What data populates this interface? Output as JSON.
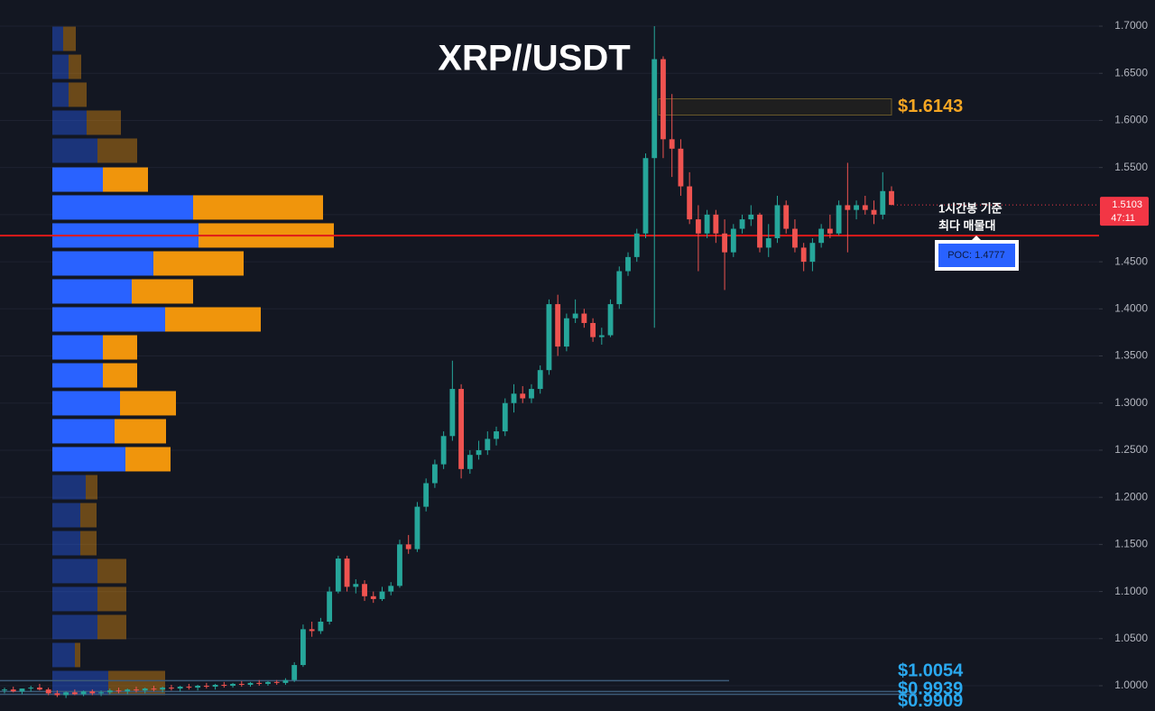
{
  "chart_data": {
    "type": "candlestick",
    "title": "XRP//USDT",
    "ylim": [
      0.9732,
      1.7278
    ],
    "yticks": [
      {
        "value": 1.0,
        "label": "1.0000"
      },
      {
        "value": 1.05,
        "label": "1.0500"
      },
      {
        "value": 1.1,
        "label": "1.1000"
      },
      {
        "value": 1.15,
        "label": "1.1500"
      },
      {
        "value": 1.2,
        "label": "1.2000"
      },
      {
        "value": 1.25,
        "label": "1.2500"
      },
      {
        "value": 1.3,
        "label": "1.3000"
      },
      {
        "value": 1.35,
        "label": "1.3500"
      },
      {
        "value": 1.4,
        "label": "1.4000"
      },
      {
        "value": 1.45,
        "label": "1.4500"
      },
      {
        "value": 1.5,
        "label": "1.5000"
      },
      {
        "value": 1.55,
        "label": "1.5500"
      },
      {
        "value": 1.6,
        "label": "1.6000"
      },
      {
        "value": 1.65,
        "label": "1.6500"
      },
      {
        "value": 1.7,
        "label": "1.7000"
      }
    ],
    "grid": true,
    "up_color": "#26a69a",
    "down_color": "#ef5350",
    "ohlc": [
      [
        0.995,
        0.998,
        0.992,
        0.996
      ],
      [
        0.996,
        0.999,
        0.993,
        0.994
      ],
      [
        0.994,
        0.997,
        0.991,
        0.997
      ],
      [
        0.997,
        1.0,
        0.994,
        0.998
      ],
      [
        0.998,
        1.002,
        0.995,
        0.996
      ],
      [
        0.996,
        0.998,
        0.99,
        0.992
      ],
      [
        0.992,
        0.995,
        0.988,
        0.99
      ],
      [
        0.99,
        0.994,
        0.987,
        0.993
      ],
      [
        0.993,
        0.996,
        0.99,
        0.991
      ],
      [
        0.991,
        0.995,
        0.989,
        0.994
      ],
      [
        0.994,
        0.996,
        0.99,
        0.992
      ],
      [
        0.992,
        0.995,
        0.989,
        0.993
      ],
      [
        0.993,
        0.997,
        0.991,
        0.995
      ],
      [
        0.995,
        0.998,
        0.992,
        0.994
      ],
      [
        0.994,
        0.997,
        0.991,
        0.996
      ],
      [
        0.996,
        0.999,
        0.993,
        0.995
      ],
      [
        0.995,
        0.998,
        0.992,
        0.997
      ],
      [
        0.997,
        1.0,
        0.994,
        0.996
      ],
      [
        0.996,
        0.999,
        0.993,
        0.998
      ],
      [
        0.998,
        1.001,
        0.995,
        0.997
      ],
      [
        0.997,
        1.0,
        0.994,
        0.999
      ],
      [
        0.999,
        1.002,
        0.996,
        0.998
      ],
      [
        0.998,
        1.001,
        0.995,
        1.0
      ],
      [
        1.0,
        1.003,
        0.997,
        0.999
      ],
      [
        0.999,
        1.002,
        0.996,
        1.001
      ],
      [
        1.001,
        1.004,
        0.998,
        1.0
      ],
      [
        1.0,
        1.003,
        0.998,
        1.002
      ],
      [
        1.002,
        1.005,
        0.999,
        1.001
      ],
      [
        1.001,
        1.004,
        0.999,
        1.003
      ],
      [
        1.003,
        1.006,
        1.0,
        1.002
      ],
      [
        1.002,
        1.005,
        1.0,
        1.004
      ],
      [
        1.004,
        1.006,
        1.001,
        1.003
      ],
      [
        1.003,
        1.008,
        1.001,
        1.006
      ],
      [
        1.006,
        1.025,
        1.004,
        1.022
      ],
      [
        1.022,
        1.065,
        1.02,
        1.06
      ],
      [
        1.06,
        1.068,
        1.052,
        1.058
      ],
      [
        1.058,
        1.072,
        1.055,
        1.068
      ],
      [
        1.068,
        1.105,
        1.065,
        1.1
      ],
      [
        1.1,
        1.138,
        1.098,
        1.135
      ],
      [
        1.135,
        1.138,
        1.1,
        1.105
      ],
      [
        1.105,
        1.113,
        1.098,
        1.108
      ],
      [
        1.108,
        1.112,
        1.09,
        1.095
      ],
      [
        1.095,
        1.1,
        1.088,
        1.092
      ],
      [
        1.092,
        1.105,
        1.09,
        1.1
      ],
      [
        1.1,
        1.11,
        1.096,
        1.106
      ],
      [
        1.106,
        1.155,
        1.104,
        1.15
      ],
      [
        1.15,
        1.16,
        1.14,
        1.145
      ],
      [
        1.145,
        1.195,
        1.142,
        1.19
      ],
      [
        1.19,
        1.22,
        1.185,
        1.215
      ],
      [
        1.215,
        1.24,
        1.21,
        1.235
      ],
      [
        1.235,
        1.27,
        1.23,
        1.265
      ],
      [
        1.265,
        1.345,
        1.26,
        1.315
      ],
      [
        1.315,
        1.32,
        1.22,
        1.23
      ],
      [
        1.23,
        1.25,
        1.225,
        1.245
      ],
      [
        1.245,
        1.26,
        1.24,
        1.25
      ],
      [
        1.25,
        1.27,
        1.245,
        1.262
      ],
      [
        1.262,
        1.275,
        1.255,
        1.27
      ],
      [
        1.27,
        1.305,
        1.265,
        1.3
      ],
      [
        1.3,
        1.32,
        1.29,
        1.31
      ],
      [
        1.31,
        1.318,
        1.3,
        1.305
      ],
      [
        1.305,
        1.32,
        1.3,
        1.315
      ],
      [
        1.315,
        1.34,
        1.31,
        1.335
      ],
      [
        1.335,
        1.41,
        1.33,
        1.405
      ],
      [
        1.405,
        1.415,
        1.35,
        1.36
      ],
      [
        1.36,
        1.395,
        1.355,
        1.39
      ],
      [
        1.39,
        1.41,
        1.385,
        1.395
      ],
      [
        1.395,
        1.4,
        1.38,
        1.385
      ],
      [
        1.385,
        1.39,
        1.365,
        1.37
      ],
      [
        1.37,
        1.38,
        1.362,
        1.372
      ],
      [
        1.372,
        1.41,
        1.37,
        1.405
      ],
      [
        1.405,
        1.445,
        1.4,
        1.44
      ],
      [
        1.44,
        1.46,
        1.435,
        1.455
      ],
      [
        1.455,
        1.485,
        1.45,
        1.48
      ],
      [
        1.48,
        1.565,
        1.475,
        1.56
      ],
      [
        1.56,
        1.7,
        1.38,
        1.665
      ],
      [
        1.665,
        1.668,
        1.56,
        1.58
      ],
      [
        1.58,
        1.628,
        1.54,
        1.57
      ],
      [
        1.57,
        1.58,
        1.52,
        1.53
      ],
      [
        1.53,
        1.545,
        1.49,
        1.495
      ],
      [
        1.495,
        1.51,
        1.44,
        1.48
      ],
      [
        1.48,
        1.505,
        1.475,
        1.5
      ],
      [
        1.5,
        1.505,
        1.47,
        1.48
      ],
      [
        1.48,
        1.495,
        1.42,
        1.46
      ],
      [
        1.46,
        1.49,
        1.455,
        1.485
      ],
      [
        1.485,
        1.5,
        1.48,
        1.495
      ],
      [
        1.495,
        1.51,
        1.488,
        1.5
      ],
      [
        1.5,
        1.502,
        1.46,
        1.465
      ],
      [
        1.465,
        1.49,
        1.455,
        1.475
      ],
      [
        1.475,
        1.52,
        1.47,
        1.51
      ],
      [
        1.51,
        1.515,
        1.48,
        1.485
      ],
      [
        1.485,
        1.495,
        1.46,
        1.465
      ],
      [
        1.465,
        1.47,
        1.44,
        1.45
      ],
      [
        1.45,
        1.475,
        1.44,
        1.47
      ],
      [
        1.47,
        1.49,
        1.465,
        1.485
      ],
      [
        1.485,
        1.5,
        1.475,
        1.48
      ],
      [
        1.48,
        1.515,
        1.478,
        1.51
      ],
      [
        1.51,
        1.555,
        1.46,
        1.505
      ],
      [
        1.505,
        1.515,
        1.495,
        1.51
      ],
      [
        1.51,
        1.52,
        1.5,
        1.505
      ],
      [
        1.505,
        1.515,
        1.49,
        1.5
      ],
      [
        1.5,
        1.545,
        1.495,
        1.525
      ],
      [
        1.525,
        1.53,
        1.51,
        1.5103
      ]
    ],
    "volume_profile": {
      "prices": [
        1.6866,
        1.6569,
        1.6273,
        1.5976,
        1.5679,
        1.5372,
        1.5076,
        1.4779,
        1.4482,
        1.4185,
        1.3888,
        1.3591,
        1.3294,
        1.2998,
        1.2701,
        1.2404,
        1.2107,
        1.181,
        1.1513,
        1.1217,
        1.092,
        1.0623,
        1.0326,
        1.0029
      ],
      "buy": [
        12,
        18,
        18,
        38,
        50,
        56,
        156,
        162,
        112,
        88,
        125,
        56,
        56,
        75,
        69,
        81,
        37,
        31,
        31,
        50,
        50,
        50,
        25,
        62
      ],
      "sell": [
        14,
        14,
        20,
        38,
        44,
        50,
        144,
        150,
        100,
        68,
        106,
        38,
        38,
        62,
        57,
        50,
        13,
        18,
        18,
        32,
        32,
        32,
        6,
        63
      ],
      "in_value_area": [
        false,
        false,
        false,
        false,
        false,
        true,
        true,
        true,
        true,
        true,
        true,
        true,
        true,
        true,
        true,
        true,
        false,
        false,
        false,
        false,
        false,
        false,
        false,
        false
      ],
      "buy_color": "#2962ff",
      "sell_color": "#f0950c"
    },
    "poc": {
      "value": 1.4777,
      "label": "POC: 1.4777",
      "color": "#e01a1a"
    },
    "annotation": [
      "1시간봉 기준",
      "최다 매물대"
    ],
    "levels": [
      {
        "value": 1.6143,
        "label": "$1.6143",
        "color": "#f5a623"
      },
      {
        "value": 1.0054,
        "label": "$1.0054",
        "color": "#2aa9f0"
      },
      {
        "value": 0.9939,
        "label": "$0.9939",
        "color": "#2aa9f0"
      },
      {
        "value": 0.9909,
        "label": "$0.9909",
        "color": "#2aa9f0"
      }
    ],
    "last_price": {
      "value": 1.5103,
      "label": "1.5103",
      "countdown": "47:11",
      "color": "#f23645"
    }
  }
}
